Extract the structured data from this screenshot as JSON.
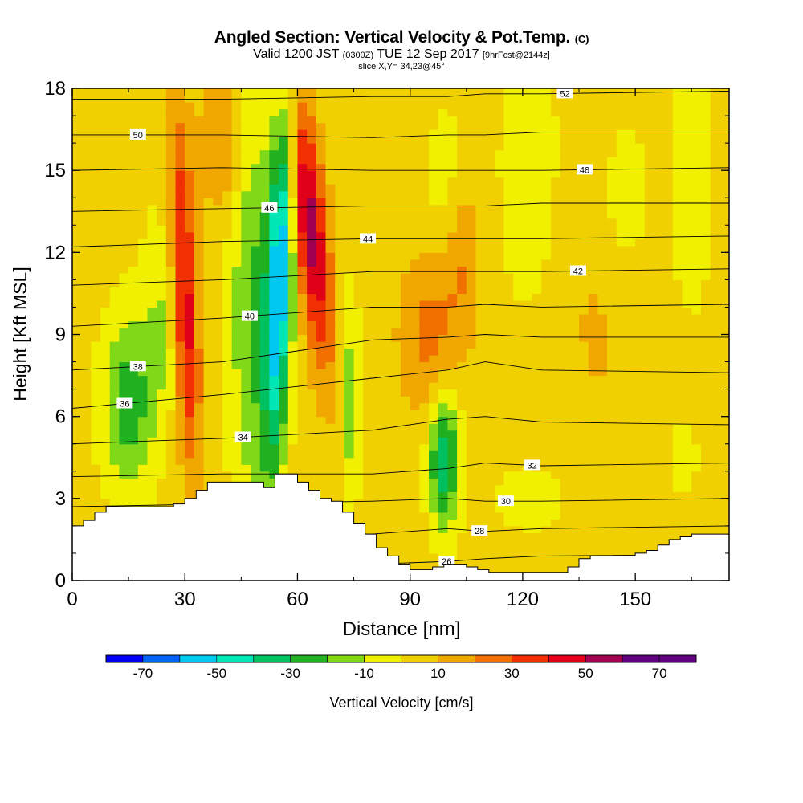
{
  "title": {
    "main": "Angled Section: Vertical Velocity & Pot.Temp.",
    "unit": "(C)",
    "valid_prefix": "Valid 1200 JST",
    "valid_z": "(0300Z)",
    "valid_date": "TUE 12 Sep 2017",
    "forecast": "[9hrFcst@2144z]",
    "slice": "slice X,Y= 34,23@45°"
  },
  "chart_data": {
    "type": "heatmap",
    "xlabel": "Distance [nm]",
    "ylabel": "Height [Kft MSL]",
    "xlim": [
      0,
      175
    ],
    "ylim": [
      0,
      18
    ],
    "xticks": [
      "0",
      "30",
      "60",
      "90",
      "120",
      "150"
    ],
    "yticks": [
      "0",
      "3",
      "6",
      "9",
      "12",
      "15",
      "18"
    ],
    "colorbar": {
      "label": "Vertical Velocity [cm/s]",
      "tick_labels": [
        "-70",
        "-50",
        "-30",
        "-10",
        "10",
        "30",
        "50",
        "70"
      ],
      "levels": [
        -80,
        -70,
        -60,
        -50,
        -40,
        -30,
        -20,
        -10,
        0,
        10,
        20,
        30,
        40,
        50,
        60,
        70,
        80
      ],
      "colors": [
        "#0000f0",
        "#0064f0",
        "#00c8f0",
        "#00e6b4",
        "#00c060",
        "#20b020",
        "#80d818",
        "#f0f000",
        "#f0d000",
        "#f0a800",
        "#f07000",
        "#f03000",
        "#e00018",
        "#a00050",
        "#600080",
        "#600080"
      ]
    },
    "theta_contours": [
      {
        "label": "26",
        "x": [
          0,
          40,
          80,
          100,
          110,
          125,
          175
        ],
        "y": [
          0.4,
          0.5,
          0.6,
          0.7,
          0.8,
          0.9,
          0.95
        ]
      },
      {
        "label": "28",
        "x": [
          0,
          40,
          80,
          100,
          110,
          125,
          175
        ],
        "y": [
          1.5,
          1.6,
          1.7,
          1.9,
          1.8,
          1.9,
          2.0
        ]
      },
      {
        "label": "30",
        "x": [
          0,
          40,
          80,
          100,
          110,
          125,
          175
        ],
        "y": [
          2.7,
          2.8,
          2.9,
          3.0,
          2.9,
          2.9,
          3.0
        ]
      },
      {
        "label": "32",
        "x": [
          0,
          40,
          80,
          100,
          110,
          125,
          175
        ],
        "y": [
          3.8,
          3.9,
          3.9,
          4.1,
          4.3,
          4.2,
          4.3
        ]
      },
      {
        "label": "34",
        "x": [
          0,
          40,
          80,
          100,
          110,
          125,
          175
        ],
        "y": [
          5.0,
          5.2,
          5.5,
          5.9,
          6.0,
          5.8,
          5.7
        ]
      },
      {
        "label": "36",
        "x": [
          0,
          40,
          80,
          100,
          110,
          125,
          175
        ],
        "y": [
          6.3,
          6.8,
          7.4,
          7.7,
          8.0,
          7.7,
          7.6
        ]
      },
      {
        "label": "38",
        "x": [
          0,
          40,
          80,
          100,
          110,
          125,
          175
        ],
        "y": [
          7.7,
          8.0,
          8.8,
          8.9,
          9.0,
          8.9,
          8.9
        ]
      },
      {
        "label": "40",
        "x": [
          0,
          40,
          80,
          100,
          110,
          125,
          175
        ],
        "y": [
          9.3,
          9.6,
          10.0,
          10.0,
          10.1,
          10.0,
          10.1
        ]
      },
      {
        "label": "42",
        "x": [
          0,
          40,
          80,
          100,
          110,
          125,
          175
        ],
        "y": [
          10.8,
          11.0,
          11.3,
          11.3,
          11.3,
          11.3,
          11.4
        ]
      },
      {
        "label": "44",
        "x": [
          0,
          40,
          80,
          100,
          110,
          125,
          175
        ],
        "y": [
          12.2,
          12.4,
          12.5,
          12.5,
          12.5,
          12.5,
          12.6
        ]
      },
      {
        "label": "46",
        "x": [
          0,
          40,
          80,
          100,
          110,
          125,
          175
        ],
        "y": [
          13.5,
          13.6,
          13.7,
          13.7,
          13.7,
          13.8,
          13.8
        ]
      },
      {
        "label": "48",
        "x": [
          0,
          40,
          80,
          100,
          110,
          125,
          175
        ],
        "y": [
          15.0,
          15.1,
          15.0,
          15.0,
          15.0,
          15.0,
          15.1
        ]
      },
      {
        "label": "50",
        "x": [
          0,
          40,
          80,
          100,
          110,
          125,
          175
        ],
        "y": [
          16.3,
          16.3,
          16.2,
          16.3,
          16.3,
          16.4,
          16.4
        ]
      },
      {
        "label": "52",
        "x": [
          0,
          40,
          80,
          100,
          110,
          125,
          175
        ],
        "y": [
          17.6,
          17.6,
          17.7,
          17.7,
          17.8,
          17.8,
          17.9
        ]
      }
    ],
    "terrain": {
      "x": [
        0,
        3,
        6,
        9,
        12,
        15,
        18,
        21,
        24,
        27,
        30,
        33,
        36,
        39,
        42,
        45,
        48,
        51,
        54,
        57,
        60,
        63,
        66,
        69,
        72,
        75,
        78,
        81,
        84,
        87,
        90,
        93,
        96,
        99,
        102,
        105,
        108,
        111,
        114,
        117,
        120,
        123,
        126,
        129,
        132,
        135,
        138,
        141,
        144,
        147,
        150,
        153,
        156,
        159,
        162,
        165,
        168,
        171,
        175
      ],
      "y": [
        2.0,
        2.2,
        2.5,
        2.7,
        2.7,
        2.7,
        2.7,
        2.7,
        2.7,
        2.8,
        3.0,
        3.3,
        3.6,
        3.6,
        3.6,
        3.6,
        3.6,
        3.4,
        3.9,
        3.9,
        3.6,
        3.3,
        3.0,
        2.9,
        2.5,
        2.1,
        1.7,
        1.2,
        0.9,
        0.6,
        0.4,
        0.4,
        0.5,
        0.6,
        0.6,
        0.5,
        0.4,
        0.3,
        0.3,
        0.3,
        0.3,
        0.3,
        0.3,
        0.3,
        0.5,
        0.8,
        0.9,
        0.9,
        0.9,
        0.9,
        1.0,
        1.1,
        1.3,
        1.5,
        1.6,
        1.7,
        1.7,
        1.7,
        1.7
      ]
    }
  }
}
